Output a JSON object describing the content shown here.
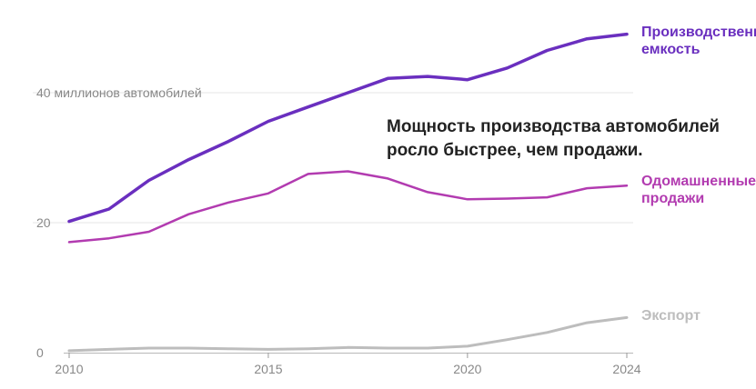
{
  "chart_data": {
    "type": "line",
    "title": "",
    "xlabel": "",
    "ylabel": "",
    "xlim": [
      2010,
      2024
    ],
    "ylim": [
      0,
      50
    ],
    "grid": true,
    "x": [
      2010,
      2011,
      2012,
      2013,
      2014,
      2015,
      2016,
      2017,
      2018,
      2019,
      2020,
      2021,
      2022,
      2023,
      2024
    ],
    "x_tick_labels": [
      "2010",
      "2015",
      "2020",
      "2024"
    ],
    "y_tick_labels": [
      "0",
      "20",
      "40 миллионов автомобилей"
    ],
    "annotation": {
      "line1": "Мощность производства автомобилей",
      "line2": "росло быстрее, чем продажи."
    },
    "series": [
      {
        "name": "Производственная емкость",
        "label_line1": "Производственная",
        "label_line2": "емкость",
        "color": "#6a2fbf",
        "values": [
          20.2,
          22.1,
          26.5,
          29.7,
          32.5,
          35.6,
          37.8,
          40.0,
          42.2,
          42.5,
          42.0,
          43.8,
          46.5,
          48.3,
          49.0
        ]
      },
      {
        "name": "Одомашненные продажи",
        "label_line1": "Одомашненные",
        "label_line2": "продажи",
        "color": "#b23bb0",
        "values": [
          17.0,
          17.6,
          18.6,
          21.3,
          23.1,
          24.5,
          27.5,
          27.9,
          26.8,
          24.7,
          23.6,
          23.7,
          23.9,
          25.3,
          25.7
        ]
      },
      {
        "name": "Экспорт",
        "label_line1": "Экспорт",
        "label_line2": "",
        "color": "#bdbdbd",
        "values": [
          0.3,
          0.5,
          0.7,
          0.7,
          0.6,
          0.5,
          0.6,
          0.8,
          0.7,
          0.7,
          1.0,
          2.0,
          3.1,
          4.6,
          5.4
        ]
      }
    ]
  }
}
